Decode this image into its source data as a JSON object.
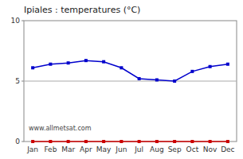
{
  "chart_data": {
    "type": "line",
    "title": "Ipiales : temperatures (°C)",
    "categories": [
      "Jan",
      "Feb",
      "Mar",
      "Apr",
      "May",
      "Jun",
      "Jul",
      "Aug",
      "Sep",
      "Oct",
      "Nov",
      "Dec"
    ],
    "series": [
      {
        "color": "#0000cc",
        "marker": "square",
        "values": [
          6.1,
          6.4,
          6.5,
          6.7,
          6.6,
          6.1,
          5.2,
          5.1,
          5.0,
          5.8,
          6.2,
          6.4
        ]
      },
      {
        "color": "#cc0000",
        "marker": "square",
        "values": [
          0.0,
          0.0,
          0.0,
          0.0,
          0.0,
          0.0,
          0.0,
          0.0,
          0.0,
          0.0,
          0.0,
          0.0
        ]
      }
    ],
    "reference_line": {
      "y": 5,
      "color": "#aaaaaa"
    },
    "annotations": [
      "www.allmetsat.com"
    ],
    "ylim": [
      0,
      10
    ],
    "yticks": [
      0,
      5,
      10
    ],
    "grid": false
  }
}
